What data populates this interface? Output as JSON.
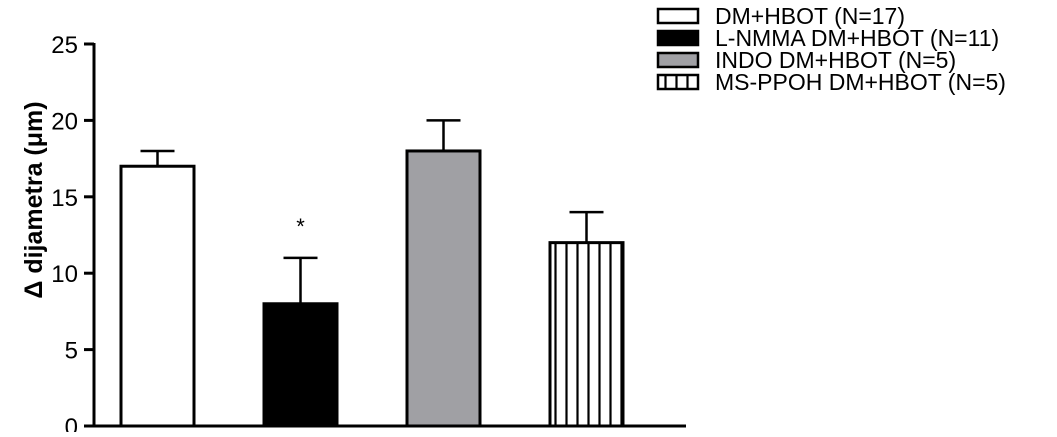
{
  "chart_data": {
    "type": "bar",
    "categories": [
      "DM+HBOT (N=17)",
      "L-NMMA DM+HBOT (N=11)",
      "INDO DM+HBOT (N=5)",
      "MS-PPOH DM+HBOT (N=5)"
    ],
    "values": [
      17,
      8,
      18,
      12
    ],
    "errors": [
      1,
      3,
      2,
      2
    ],
    "fills": [
      "#ffffff",
      "#000000",
      "#a0a0a4",
      "vertical-stripes"
    ],
    "annotations": [
      {
        "category_index": 1,
        "text": "*"
      }
    ],
    "ylabel": "Δ dijametra (μm)",
    "ylim": [
      0,
      25
    ],
    "yticks": [
      "0",
      "5",
      "10",
      "15",
      "20",
      "25"
    ],
    "legend": {
      "position": "top-right",
      "entries": [
        "DM+HBOT (N=17)",
        "L-NMMA DM+HBOT (N=11)",
        "INDO DM+HBOT (N=5)",
        "MS-PPOH DM+HBOT (N=5)"
      ]
    },
    "grid": false
  }
}
